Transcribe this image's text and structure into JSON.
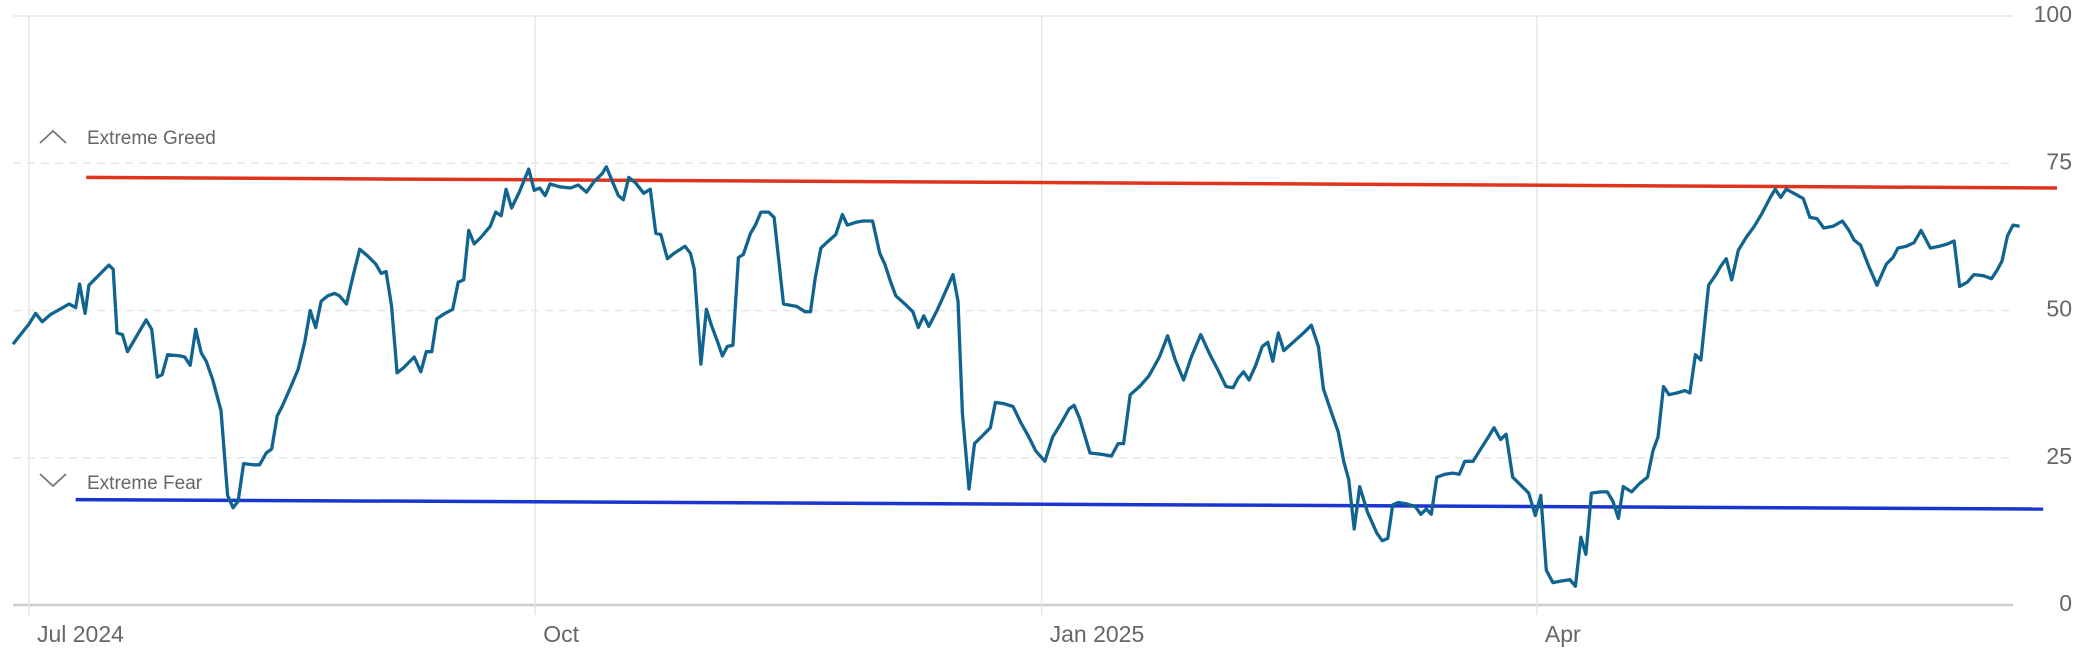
{
  "chart_data": {
    "type": "line",
    "xlim": [
      -2.9,
      368.5
    ],
    "xticks": [
      {
        "value": 0,
        "label": "Jul 2024"
      },
      {
        "value": 92,
        "label": "Oct"
      },
      {
        "value": 184,
        "label": "Jan 2025"
      },
      {
        "value": 274,
        "label": "Apr"
      }
    ],
    "ylim": [
      0,
      100
    ],
    "yticks": [
      0,
      25,
      50,
      75,
      100
    ],
    "grid": true,
    "x": [
      -2.9,
      0,
      1.2,
      2.4,
      3.9,
      5.6,
      7.3,
      8.5,
      9.2,
      10.2,
      10.9,
      12.8,
      14.5,
      15.3,
      16.0,
      17.0,
      17.9,
      19.9,
      21.3,
      22.3,
      23.3,
      24.2,
      25.2,
      27.4,
      28.3,
      29.3,
      30.3,
      31.3,
      32.2,
      33.4,
      34.9,
      36.1,
      37.1,
      38.0,
      39.0,
      40.7,
      41.9,
      43.1,
      44.1,
      45.1,
      46.0,
      47.5,
      48.9,
      50.1,
      51.1,
      52.1,
      53.1,
      54.3,
      55.5,
      56.4,
      57.7,
      58.9,
      60.1,
      61.5,
      63.0,
      64.0,
      64.9,
      65.9,
      66.9,
      68.1,
      70.0,
      71.2,
      72.2,
      73.2,
      74.1,
      75.6,
      77.0,
      78.0,
      79.0,
      79.9,
      80.9,
      82.1,
      83.8,
      84.8,
      85.8,
      86.7,
      87.7,
      89.1,
      90.8,
      91.8,
      92.8,
      93.8,
      94.7,
      96.4,
      98.4,
      99.8,
      101.3,
      102.7,
      104.2,
      104.9,
      106.1,
      107.1,
      108.0,
      109.0,
      110.2,
      111.7,
      112.9,
      113.9,
      114.8,
      116.0,
      117.2,
      119.2,
      120.2,
      120.9,
      122.1,
      123.1,
      124.0,
      125.0,
      126.0,
      126.9,
      127.9,
      128.9,
      129.8,
      131.1,
      132.0,
      133.0,
      134.4,
      135.4,
      137.1,
      138.3,
      139.5,
      141.0,
      142.0,
      142.9,
      143.9,
      144.9,
      146.6,
      147.8,
      148.7,
      150.4,
      151.6,
      153.3,
      154.6,
      155.5,
      156.5,
      157.5,
      159.4,
      160.6,
      161.6,
      162.6,
      163.5,
      165.0,
      166.4,
      167.9,
      168.8,
      169.6,
      170.8,
      171.8,
      173.2,
      174.7,
      175.6,
      177.1,
      178.8,
      180.2,
      181.7,
      182.9,
      184.6,
      186.0,
      187.5,
      189.0,
      189.9,
      190.9,
      192.8,
      194.8,
      196.7,
      197.9,
      198.9,
      200.1,
      201.8,
      203.5,
      205.4,
      206.9,
      208.3,
      209.8,
      211.2,
      212.9,
      214.6,
      216.1,
      217.5,
      218.8,
      219.7,
      220.7,
      221.7,
      222.9,
      224.1,
      225.1,
      226.0,
      227.0,
      228.0,
      229.7,
      231.6,
      233.0,
      234.3,
      235.2,
      236.7,
      237.9,
      238.9,
      239.8,
      240.8,
      241.8,
      243.2,
      244.9,
      245.9,
      246.9,
      247.8,
      248.8,
      250.2,
      251.9,
      252.9,
      253.9,
      254.8,
      255.8,
      257.3,
      258.7,
      259.9,
      260.9,
      262.4,
      263.8,
      265.3,
      266.2,
      267.4,
      268.4,
      269.6,
      270.8,
      272.5,
      273.7,
      274.7,
      275.7,
      276.9,
      278.6,
      280.0,
      281.0,
      282.0,
      282.9,
      283.9,
      285.6,
      286.8,
      287.8,
      288.8,
      289.7,
      291.2,
      292.6,
      294.1,
      295.1,
      296.0,
      297.0,
      298.0,
      299.4,
      300.9,
      301.8,
      302.8,
      303.8,
      305.2,
      306.4,
      307.4,
      308.4,
      309.4,
      310.6,
      312.0,
      313.5,
      314.9,
      316.4,
      317.3,
      318.3,
      319.3,
      320.7,
      322.4,
      323.6,
      324.9,
      326.1,
      327.8,
      329.5,
      330.7,
      331.6,
      332.8,
      334.3,
      335.8,
      337.5,
      338.7,
      339.6,
      341.1,
      342.5,
      343.8,
      345.5,
      347.1,
      348.6,
      349.8,
      350.8,
      352.2,
      353.4,
      355.1,
      356.6,
      357.6,
      358.5,
      359.5,
      360.5,
      361.7
    ],
    "series": [
      {
        "color": "#10648f",
        "values": [
          44.3,
          47.7,
          49.5,
          48.1,
          49.3,
          50.2,
          51.1,
          50.5,
          54.5,
          49.5,
          54.3,
          56.1,
          57.7,
          57.0,
          46.2,
          45.9,
          43.0,
          46.2,
          48.4,
          46.8,
          38.7,
          39.1,
          42.5,
          42.3,
          42.1,
          40.7,
          46.8,
          42.8,
          41.4,
          38.2,
          33.0,
          18.6,
          16.5,
          17.6,
          24.0,
          23.8,
          23.8,
          25.8,
          26.5,
          32.1,
          33.7,
          36.9,
          40.0,
          44.6,
          50.0,
          47.1,
          51.6,
          52.5,
          52.9,
          52.5,
          51.1,
          55.9,
          60.4,
          59.3,
          57.9,
          56.3,
          56.6,
          50.7,
          39.4,
          40.3,
          42.1,
          39.6,
          43.0,
          43.0,
          48.6,
          49.5,
          50.2,
          54.8,
          55.2,
          63.6,
          61.3,
          62.4,
          64.3,
          66.7,
          66.1,
          70.6,
          67.4,
          70.1,
          74.0,
          70.4,
          70.8,
          69.5,
          71.5,
          71.0,
          70.8,
          71.3,
          70.1,
          71.9,
          73.3,
          74.4,
          71.7,
          69.5,
          68.8,
          72.6,
          71.7,
          69.9,
          70.6,
          63.1,
          62.9,
          58.8,
          59.7,
          60.9,
          59.7,
          57.0,
          40.9,
          50.2,
          47.5,
          45.0,
          42.3,
          43.9,
          44.1,
          59.0,
          59.5,
          63.1,
          64.5,
          66.7,
          66.7,
          65.8,
          51.1,
          50.9,
          50.7,
          49.8,
          49.8,
          55.7,
          60.6,
          61.5,
          62.9,
          66.3,
          64.5,
          65.0,
          65.2,
          65.2,
          59.7,
          57.9,
          55.0,
          52.5,
          50.9,
          49.8,
          47.1,
          49.1,
          47.3,
          50.0,
          52.9,
          56.1,
          51.6,
          32.6,
          19.7,
          27.4,
          28.7,
          30.1,
          34.4,
          34.2,
          33.7,
          31.0,
          28.5,
          26.2,
          24.4,
          28.5,
          30.8,
          33.3,
          33.9,
          31.7,
          25.8,
          25.6,
          25.3,
          27.4,
          27.4,
          35.7,
          37.1,
          38.9,
          42.1,
          45.7,
          41.6,
          38.2,
          42.1,
          45.9,
          42.5,
          39.8,
          37.1,
          36.9,
          38.5,
          39.6,
          38.2,
          40.7,
          43.9,
          44.6,
          41.4,
          46.2,
          43.2,
          44.6,
          46.2,
          47.5,
          43.9,
          36.7,
          32.6,
          29.4,
          24.4,
          21.3,
          12.9,
          20.1,
          15.8,
          12.2,
          10.9,
          11.3,
          17.0,
          17.4,
          17.2,
          16.7,
          15.4,
          16.3,
          15.4,
          21.7,
          22.2,
          22.4,
          22.2,
          24.4,
          24.4,
          26.5,
          28.7,
          30.1,
          28.1,
          29.0,
          21.7,
          20.6,
          19.0,
          15.2,
          18.6,
          5.9,
          3.8,
          4.1,
          4.3,
          3.2,
          11.5,
          8.6,
          19.0,
          19.2,
          19.2,
          17.6,
          14.7,
          20.1,
          19.2,
          20.6,
          21.7,
          26.2,
          28.5,
          37.1,
          35.7,
          36.0,
          36.4,
          36.0,
          42.5,
          41.6,
          54.3,
          55.9,
          57.5,
          58.8,
          55.2,
          60.2,
          62.4,
          64.3,
          66.5,
          69.2,
          70.6,
          69.2,
          70.6,
          69.9,
          69.0,
          65.8,
          65.6,
          64.0,
          64.3,
          65.2,
          63.6,
          62.0,
          61.1,
          57.5,
          54.3,
          57.9,
          59.0,
          60.6,
          60.9,
          61.5,
          63.6,
          60.6,
          60.9,
          61.3,
          61.8,
          54.1,
          54.8,
          56.1,
          55.9,
          55.4,
          56.8,
          58.4,
          62.7,
          64.5,
          64.3
        ]
      }
    ],
    "annotations": [
      {
        "text": "Extreme Greed",
        "color": "#e0341c",
        "x": [
          10.4,
          368.5
        ],
        "values": [
          72.6,
          70.8
        ]
      },
      {
        "text": "Extreme Fear",
        "color": "#1a35d0",
        "x": [
          8.5,
          366.0
        ],
        "values": [
          17.9,
          16.3
        ]
      }
    ]
  }
}
